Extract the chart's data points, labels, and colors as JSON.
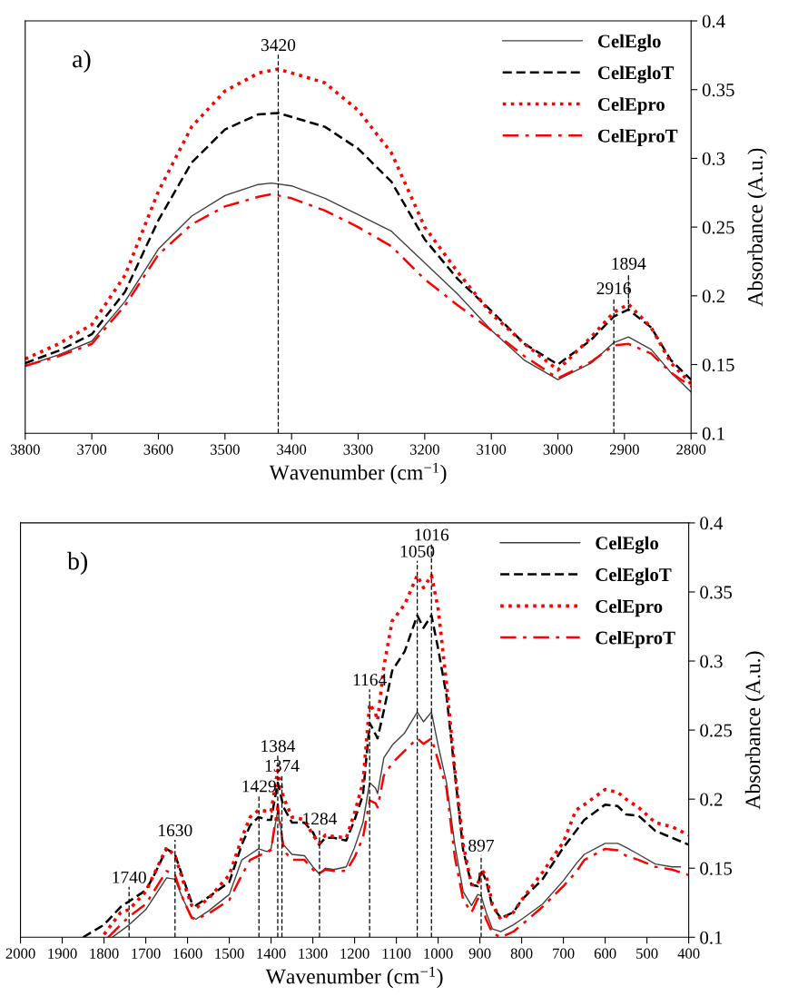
{
  "chart_data": [
    {
      "type": "line",
      "annotations": [
        "a)",
        {
          "text": "1894",
          "x": 2894,
          "y": 0.19
        }
      ],
      "xlabel": "Wavenumber (cm$^{−1}$)",
      "ylabel": "Absorbance (A.u.)",
      "xlim": [
        3800,
        2800
      ],
      "xticks": [
        3800,
        3700,
        3600,
        3500,
        3400,
        3300,
        3200,
        3100,
        3000,
        2900,
        2800
      ],
      "ylim": [
        0.1,
        0.4
      ],
      "yticks": [
        0.1,
        0.15,
        0.2,
        0.25,
        0.3,
        0.35,
        0.4
      ],
      "legend": "top right",
      "grid": false,
      "marker": "none",
      "ref_lines": [
        {
          "axis": "x",
          "value": 3420,
          "label": "3420",
          "color": "#000000",
          "line_style": "dashed"
        },
        {
          "axis": "x",
          "value": 2916,
          "label": "2916",
          "color": "#000000",
          "line_style": "dashed"
        }
      ],
      "series": [
        {
          "name": "CelEglo",
          "color": "#404040",
          "line_style": "solid",
          "x": [
            3800,
            3750,
            3700,
            3650,
            3600,
            3550,
            3500,
            3450,
            3430,
            3400,
            3350,
            3300,
            3250,
            3200,
            3150,
            3100,
            3050,
            3000,
            2950,
            2916,
            2894,
            2860,
            2830,
            2800
          ],
          "values": [
            0.149,
            0.157,
            0.167,
            0.196,
            0.234,
            0.258,
            0.273,
            0.281,
            0.282,
            0.28,
            0.271,
            0.259,
            0.247,
            0.224,
            0.201,
            0.175,
            0.153,
            0.139,
            0.151,
            0.166,
            0.17,
            0.161,
            0.144,
            0.13
          ]
        },
        {
          "name": "CelEgloT",
          "color": "#000000",
          "line_style": "dashed",
          "x": [
            3800,
            3750,
            3700,
            3650,
            3600,
            3550,
            3500,
            3450,
            3420,
            3350,
            3300,
            3250,
            3200,
            3150,
            3100,
            3050,
            3000,
            2950,
            2916,
            2894,
            2860,
            2830,
            2800
          ],
          "values": [
            0.151,
            0.16,
            0.172,
            0.203,
            0.255,
            0.297,
            0.321,
            0.332,
            0.333,
            0.323,
            0.307,
            0.283,
            0.241,
            0.212,
            0.189,
            0.165,
            0.15,
            0.168,
            0.185,
            0.19,
            0.177,
            0.153,
            0.139
          ]
        },
        {
          "name": "CelEpro",
          "color": "#ff0000",
          "line_style": "dotted",
          "x": [
            3800,
            3750,
            3700,
            3650,
            3600,
            3550,
            3500,
            3450,
            3420,
            3350,
            3300,
            3250,
            3200,
            3150,
            3100,
            3050,
            3000,
            2950,
            2916,
            2894,
            2860,
            2830,
            2800
          ],
          "values": [
            0.154,
            0.165,
            0.179,
            0.215,
            0.276,
            0.323,
            0.349,
            0.362,
            0.365,
            0.355,
            0.335,
            0.304,
            0.25,
            0.217,
            0.187,
            0.165,
            0.146,
            0.17,
            0.188,
            0.194,
            0.177,
            0.151,
            0.136
          ]
        },
        {
          "name": "CelEproT",
          "color": "#ff0000",
          "line_style": "dashdot",
          "x": [
            3800,
            3750,
            3700,
            3650,
            3600,
            3550,
            3500,
            3450,
            3430,
            3400,
            3350,
            3300,
            3250,
            3200,
            3150,
            3100,
            3050,
            3000,
            2950,
            2916,
            2894,
            2860,
            2830,
            2800
          ],
          "values": [
            0.149,
            0.156,
            0.165,
            0.193,
            0.23,
            0.252,
            0.265,
            0.272,
            0.274,
            0.271,
            0.262,
            0.25,
            0.236,
            0.212,
            0.193,
            0.175,
            0.156,
            0.14,
            0.152,
            0.164,
            0.165,
            0.158,
            0.144,
            0.134
          ]
        }
      ]
    },
    {
      "type": "line",
      "annotations": [
        "b)"
      ],
      "xlabel": "Wavenumber (cm$^{−1}$)",
      "ylabel": "Absorbance (A.u.)",
      "xlim": [
        2000,
        400
      ],
      "xticks": [
        2000,
        1900,
        1800,
        1700,
        1600,
        1500,
        1400,
        1300,
        1200,
        1100,
        1000,
        900,
        800,
        700,
        600,
        500,
        400
      ],
      "ylim": [
        0.1,
        0.4
      ],
      "yticks": [
        0.1,
        0.15,
        0.2,
        0.25,
        0.3,
        0.35,
        0.4
      ],
      "legend": "top right",
      "grid": false,
      "marker": "none",
      "ref_lines": [
        {
          "axis": "x",
          "value": 1740,
          "label": "1740",
          "color": "#000000",
          "line_style": "dashed"
        },
        {
          "axis": "x",
          "value": 1630,
          "label": "1630",
          "color": "#000000",
          "line_style": "dashed"
        },
        {
          "axis": "x",
          "value": 1429,
          "label": "1429",
          "color": "#000000",
          "line_style": "dashed"
        },
        {
          "axis": "x",
          "value": 1384,
          "label": "1384",
          "color": "#000000",
          "line_style": "dashed"
        },
        {
          "axis": "x",
          "value": 1374,
          "label": "1374",
          "color": "#000000",
          "line_style": "dashed"
        },
        {
          "axis": "x",
          "value": 1284,
          "label": "1284",
          "color": "#000000",
          "line_style": "dashed"
        },
        {
          "axis": "x",
          "value": 1164,
          "label": "1164",
          "color": "#000000",
          "line_style": "dashed"
        },
        {
          "axis": "x",
          "value": 1050,
          "label": "1050",
          "color": "#000000",
          "line_style": "dashed"
        },
        {
          "axis": "x",
          "value": 1016,
          "label": "1016",
          "color": "#000000",
          "line_style": "dashed"
        },
        {
          "axis": "x",
          "value": 897,
          "label": "897",
          "color": "#000000",
          "line_style": "dashed"
        }
      ],
      "series": [
        {
          "name": "CelEglo",
          "color": "#404040",
          "line_style": "solid",
          "x": [
            1780,
            1740,
            1700,
            1650,
            1630,
            1610,
            1590,
            1580,
            1550,
            1500,
            1470,
            1450,
            1430,
            1410,
            1400,
            1384,
            1370,
            1350,
            1320,
            1300,
            1285,
            1270,
            1250,
            1220,
            1200,
            1180,
            1164,
            1150,
            1145,
            1130,
            1110,
            1080,
            1050,
            1035,
            1016,
            1000,
            980,
            960,
            940,
            920,
            905,
            897,
            885,
            870,
            850,
            820,
            800,
            750,
            700,
            670,
            650,
            600,
            570,
            550,
            520,
            480,
            440,
            420
          ],
          "values": [
            0.1,
            0.109,
            0.12,
            0.143,
            0.142,
            0.127,
            0.115,
            0.113,
            0.119,
            0.131,
            0.156,
            0.16,
            0.164,
            0.162,
            0.164,
            0.192,
            0.167,
            0.16,
            0.159,
            0.151,
            0.146,
            0.15,
            0.149,
            0.151,
            0.165,
            0.183,
            0.212,
            0.208,
            0.204,
            0.23,
            0.239,
            0.248,
            0.263,
            0.256,
            0.263,
            0.239,
            0.212,
            0.167,
            0.133,
            0.123,
            0.131,
            0.13,
            0.118,
            0.106,
            0.104,
            0.109,
            0.113,
            0.124,
            0.141,
            0.153,
            0.16,
            0.168,
            0.168,
            0.165,
            0.16,
            0.153,
            0.151,
            0.151
          ]
        },
        {
          "name": "CelEgloT",
          "color": "#000000",
          "line_style": "dashed",
          "x": [
            1850,
            1800,
            1760,
            1740,
            1700,
            1680,
            1650,
            1630,
            1610,
            1590,
            1580,
            1550,
            1500,
            1470,
            1450,
            1430,
            1410,
            1400,
            1384,
            1370,
            1350,
            1320,
            1300,
            1285,
            1270,
            1250,
            1220,
            1200,
            1180,
            1164,
            1160,
            1145,
            1130,
            1110,
            1080,
            1050,
            1035,
            1016,
            1000,
            980,
            960,
            940,
            920,
            905,
            897,
            885,
            870,
            850,
            820,
            800,
            750,
            700,
            670,
            650,
            600,
            570,
            550,
            520,
            480,
            440,
            400
          ],
          "values": [
            0.1,
            0.109,
            0.122,
            0.126,
            0.134,
            0.145,
            0.164,
            0.16,
            0.142,
            0.125,
            0.123,
            0.129,
            0.14,
            0.167,
            0.181,
            0.187,
            0.185,
            0.185,
            0.212,
            0.194,
            0.183,
            0.183,
            0.176,
            0.167,
            0.172,
            0.172,
            0.17,
            0.185,
            0.203,
            0.255,
            0.253,
            0.244,
            0.264,
            0.293,
            0.307,
            0.333,
            0.324,
            0.333,
            0.309,
            0.275,
            0.219,
            0.163,
            0.138,
            0.137,
            0.149,
            0.141,
            0.122,
            0.114,
            0.118,
            0.127,
            0.142,
            0.165,
            0.177,
            0.185,
            0.196,
            0.195,
            0.189,
            0.188,
            0.177,
            0.172,
            0.167
          ]
        },
        {
          "name": "CelEpro",
          "color": "#ff0000",
          "line_style": "dotted",
          "x": [
            1800,
            1760,
            1740,
            1700,
            1650,
            1630,
            1610,
            1590,
            1580,
            1550,
            1500,
            1470,
            1450,
            1430,
            1400,
            1384,
            1370,
            1350,
            1320,
            1300,
            1285,
            1270,
            1250,
            1220,
            1200,
            1180,
            1164,
            1150,
            1145,
            1130,
            1110,
            1080,
            1050,
            1035,
            1016,
            1000,
            980,
            960,
            940,
            920,
            905,
            897,
            885,
            870,
            850,
            820,
            800,
            750,
            700,
            670,
            650,
            600,
            570,
            550,
            520,
            480,
            440,
            400
          ],
          "values": [
            0.102,
            0.118,
            0.12,
            0.133,
            0.165,
            0.159,
            0.14,
            0.123,
            0.121,
            0.128,
            0.145,
            0.172,
            0.187,
            0.192,
            0.191,
            0.221,
            0.201,
            0.187,
            0.185,
            0.174,
            0.168,
            0.174,
            0.173,
            0.172,
            0.19,
            0.212,
            0.269,
            0.262,
            0.257,
            0.296,
            0.329,
            0.341,
            0.362,
            0.353,
            0.362,
            0.338,
            0.284,
            0.221,
            0.167,
            0.138,
            0.138,
            0.149,
            0.145,
            0.124,
            0.113,
            0.118,
            0.127,
            0.147,
            0.169,
            0.192,
            0.196,
            0.207,
            0.205,
            0.2,
            0.194,
            0.183,
            0.18,
            0.174
          ]
        },
        {
          "name": "CelEproT",
          "color": "#ff0000",
          "line_style": "dashdot",
          "x": [
            1790,
            1740,
            1700,
            1650,
            1630,
            1610,
            1590,
            1580,
            1550,
            1500,
            1470,
            1450,
            1430,
            1400,
            1384,
            1370,
            1350,
            1320,
            1300,
            1285,
            1270,
            1250,
            1220,
            1200,
            1180,
            1164,
            1150,
            1145,
            1130,
            1110,
            1080,
            1050,
            1035,
            1016,
            1000,
            980,
            960,
            940,
            920,
            905,
            897,
            885,
            870,
            850,
            820,
            800,
            750,
            700,
            670,
            650,
            600,
            570,
            550,
            520,
            480,
            440,
            400
          ],
          "values": [
            0.1,
            0.115,
            0.124,
            0.148,
            0.145,
            0.127,
            0.114,
            0.113,
            0.117,
            0.127,
            0.145,
            0.156,
            0.159,
            0.163,
            0.196,
            0.163,
            0.156,
            0.156,
            0.149,
            0.146,
            0.149,
            0.148,
            0.148,
            0.158,
            0.172,
            0.199,
            0.197,
            0.194,
            0.217,
            0.226,
            0.235,
            0.244,
            0.24,
            0.244,
            0.228,
            0.208,
            0.158,
            0.127,
            0.118,
            0.128,
            0.124,
            0.113,
            0.103,
            0.1,
            0.104,
            0.109,
            0.122,
            0.137,
            0.147,
            0.156,
            0.164,
            0.163,
            0.159,
            0.156,
            0.151,
            0.149,
            0.145
          ]
        }
      ]
    }
  ]
}
